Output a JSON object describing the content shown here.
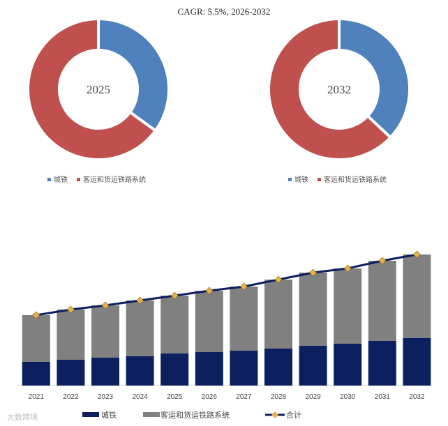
{
  "chart_data": [
    {
      "type": "pie",
      "title": "CAGR: 5.5%, 2026-2032",
      "center_label": "2025",
      "categories": [
        "城铁",
        "客运和货运铁路系统"
      ],
      "values": [
        35,
        65
      ],
      "colors": [
        "#4f81bd",
        "#c0504d"
      ],
      "legend": "bottom"
    },
    {
      "type": "pie",
      "center_label": "2032",
      "categories": [
        "城铁",
        "客运和货运铁路系统"
      ],
      "values": [
        37,
        63
      ],
      "colors": [
        "#4f81bd",
        "#c0504d"
      ],
      "legend": "bottom"
    },
    {
      "type": "bar",
      "stacked": true,
      "categories": [
        "2021",
        "2022",
        "2023",
        "2024",
        "2025",
        "2026",
        "2027",
        "2028",
        "2029",
        "2030",
        "2031",
        "2032"
      ],
      "series": [
        {
          "name": "城铁",
          "color": "#0c1f5e",
          "values": [
            34,
            37,
            40,
            42,
            46,
            48,
            50,
            53,
            57,
            60,
            64,
            68
          ]
        },
        {
          "name": "客运和货运铁路系统",
          "color": "#808080",
          "values": [
            67,
            72,
            75,
            80,
            83,
            88,
            92,
            99,
            105,
            108,
            115,
            120
          ]
        },
        {
          "name": "合计",
          "type": "line",
          "color": "#0c1f5e",
          "marker_color": "#e8b04a",
          "values": [
            101,
            109,
            115,
            122,
            129,
            136,
            142,
            152,
            162,
            168,
            179,
            188
          ]
        }
      ],
      "y_axis_shown": false,
      "grid": false,
      "legend": "bottom"
    }
  ],
  "watermark": "大数跨境"
}
